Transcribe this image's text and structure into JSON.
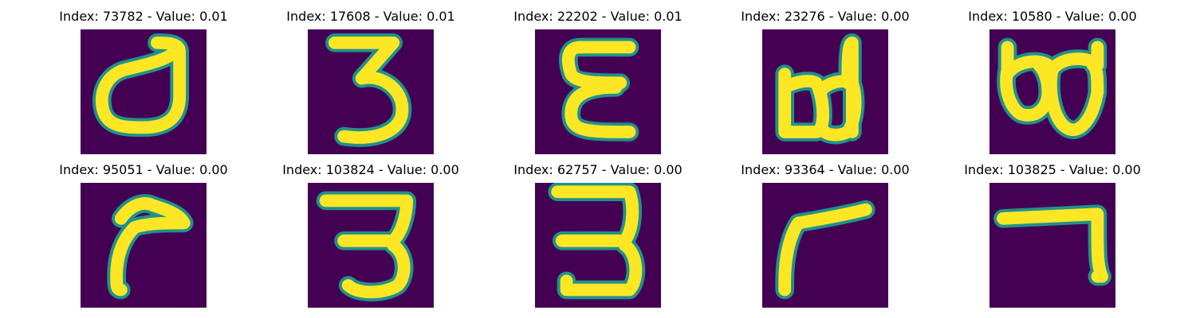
{
  "figure": {
    "colormap": "viridis",
    "background_color": "#440154",
    "stroke_color": "#fde725",
    "edge_color": "#21918c",
    "axes_visible": false
  },
  "panels": [
    {
      "title": "Index: 73782 - Value: 0.01",
      "index": 73782,
      "value": 0.01,
      "glyph": "loop-with-tail"
    },
    {
      "title": "Index: 17608 - Value: 0.01",
      "index": 17608,
      "value": 0.01,
      "glyph": "three"
    },
    {
      "title": "Index: 22202 - Value: 0.01",
      "index": 22202,
      "value": 0.01,
      "glyph": "epsilon"
    },
    {
      "title": "Index: 23276 - Value: 0.00",
      "index": 23276,
      "value": 0.0,
      "glyph": "double-loop-with-stem"
    },
    {
      "title": "Index: 10580 - Value: 0.00",
      "index": 10580,
      "value": 0.0,
      "glyph": "double-loop"
    },
    {
      "title": "Index: 95051 - Value: 0.00",
      "index": 95051,
      "value": 0.0,
      "glyph": "hook"
    },
    {
      "title": "Index: 103824 - Value: 0.00",
      "index": 103824,
      "value": 0.0,
      "glyph": "three-flat-top"
    },
    {
      "title": "Index: 62757 - Value: 0.00",
      "index": 62757,
      "value": 0.0,
      "glyph": "three-flat-top"
    },
    {
      "title": "Index: 93364 - Value: 0.00",
      "index": 93364,
      "value": 0.0,
      "glyph": "gamma"
    },
    {
      "title": "Index: 103825 - Value: 0.00",
      "index": 103825,
      "value": 0.0,
      "glyph": "seven"
    }
  ]
}
